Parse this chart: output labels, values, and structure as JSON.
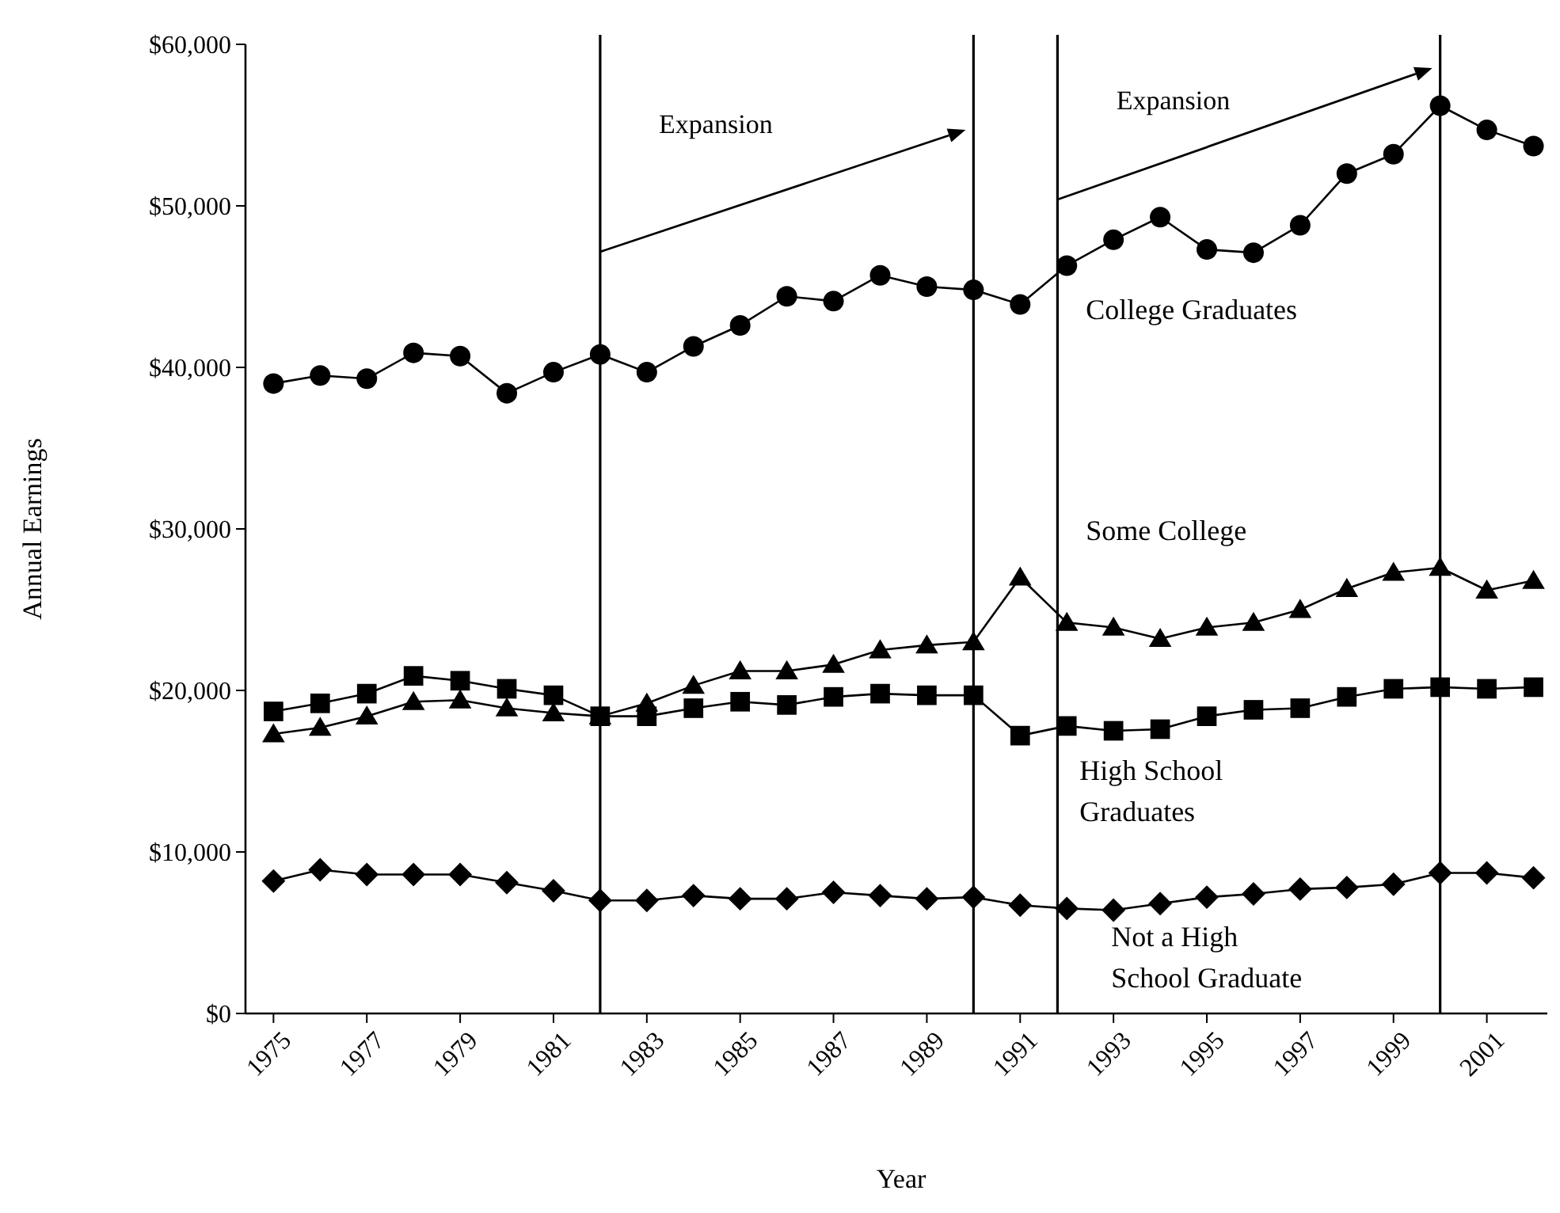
{
  "chart_data": {
    "type": "line",
    "xlabel": "Year",
    "ylabel": "Annual Earnings",
    "x": [
      1975,
      1976,
      1977,
      1978,
      1979,
      1980,
      1981,
      1982,
      1983,
      1984,
      1985,
      1986,
      1987,
      1988,
      1989,
      1990,
      1991,
      1992,
      1993,
      1994,
      1995,
      1996,
      1997,
      1998,
      1999,
      2000,
      2001,
      2002
    ],
    "series": [
      {
        "name": "College Graduates",
        "color": "#000000",
        "marker": "circle",
        "values": [
          39000,
          39500,
          39300,
          40900,
          40700,
          38400,
          39700,
          40800,
          39700,
          41300,
          42600,
          44400,
          44100,
          45700,
          45000,
          44800,
          43900,
          46300,
          47900,
          49300,
          47300,
          47100,
          48800,
          52000,
          53200,
          56200,
          54700,
          53700
        ]
      },
      {
        "name": "Some College",
        "color": "#000000",
        "marker": "triangle",
        "values": [
          17300,
          17700,
          18400,
          19300,
          19400,
          18900,
          18600,
          18400,
          19200,
          20300,
          21200,
          21200,
          21600,
          22500,
          22800,
          23000,
          27000,
          24200,
          23900,
          23200,
          23900,
          24200,
          25000,
          26300,
          27300,
          27600,
          26200,
          26800
        ]
      },
      {
        "name": "High School Graduates",
        "color": "#000000",
        "marker": "square",
        "values": [
          18700,
          19200,
          19800,
          20900,
          20600,
          20100,
          19700,
          18400,
          18400,
          18900,
          19300,
          19100,
          19600,
          19800,
          19700,
          19700,
          17200,
          17800,
          17500,
          17600,
          18400,
          18800,
          18900,
          19600,
          20100,
          20200,
          20100,
          20200
        ]
      },
      {
        "name": "Not a High School Graduate",
        "color": "#000000",
        "marker": "diamond",
        "values": [
          8200,
          8900,
          8600,
          8600,
          8600,
          8100,
          7600,
          7000,
          7000,
          7300,
          7100,
          7100,
          7500,
          7300,
          7100,
          7200,
          6700,
          6500,
          6400,
          6800,
          7200,
          7400,
          7700,
          7800,
          8000,
          8700,
          8700,
          8400
        ]
      }
    ],
    "xlim": [
      1974.4,
      2002.5
    ],
    "xticks": [
      1975,
      1977,
      1979,
      1981,
      1983,
      1985,
      1987,
      1989,
      1991,
      1993,
      1995,
      1997,
      1999,
      2001
    ],
    "ylim": [
      0,
      60000
    ],
    "yticks": [
      {
        "value": 0,
        "label": "$0"
      },
      {
        "value": 10000,
        "label": "$10,000"
      },
      {
        "value": 20000,
        "label": "$20,000"
      },
      {
        "value": 30000,
        "label": "$30,000"
      },
      {
        "value": 40000,
        "label": "$40,000"
      },
      {
        "value": 50000,
        "label": "$50,000"
      },
      {
        "value": 60000,
        "label": "$60,000"
      }
    ],
    "ref_lines": [
      {
        "axis": "x",
        "value": 1982,
        "color": "#000000"
      },
      {
        "axis": "x",
        "value": 1990,
        "color": "#000000"
      },
      {
        "axis": "x",
        "value": 1991.8,
        "color": "#000000"
      },
      {
        "axis": "x",
        "value": 2000,
        "color": "#000000"
      }
    ],
    "annotations": [
      "Expansion",
      "Expansion"
    ],
    "grid": false,
    "legend": false,
    "line_style": "solid"
  }
}
